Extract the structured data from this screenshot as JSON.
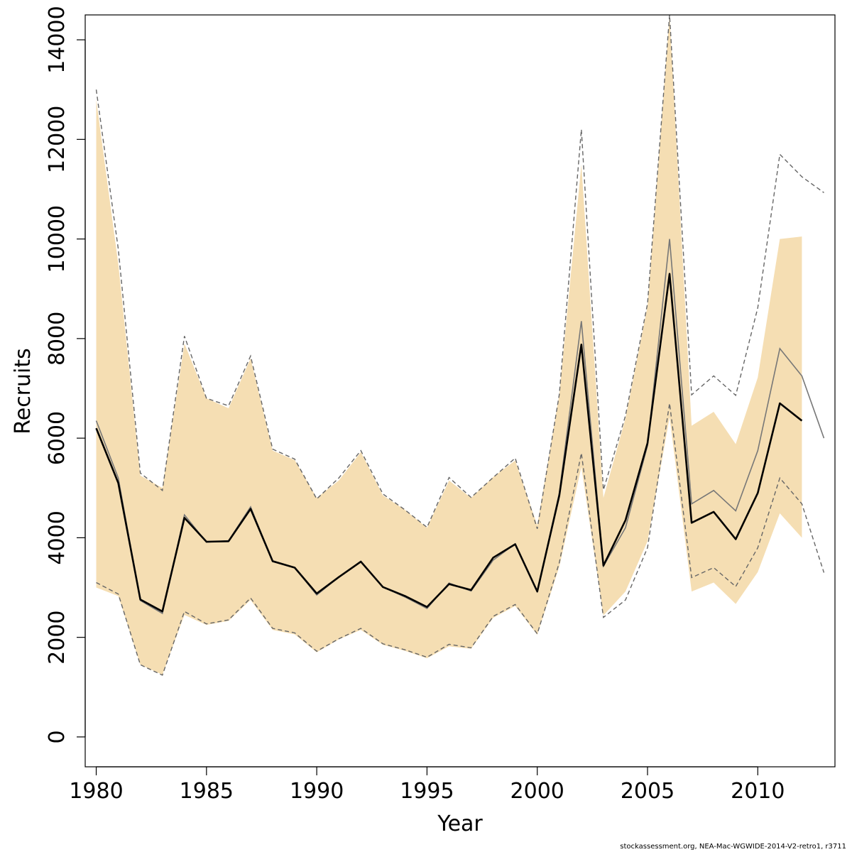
{
  "chart_data": {
    "type": "line",
    "xlabel": "Year",
    "ylabel": "Recruits",
    "xlim": [
      1979.5,
      2013.5
    ],
    "ylim": [
      -600,
      14500
    ],
    "x_ticks": [
      1980,
      1985,
      1990,
      1995,
      2000,
      2005,
      2010
    ],
    "y_ticks": [
      0,
      2000,
      4000,
      6000,
      8000,
      10000,
      12000,
      14000
    ],
    "colors": {
      "band": "#f5deb3",
      "estimate": "#000000",
      "retro": "#777777",
      "retro_ci": "#666666"
    },
    "band": {
      "x": [
        1980,
        1981,
        1982,
        1983,
        1984,
        1985,
        1986,
        1987,
        1988,
        1989,
        1990,
        1991,
        1992,
        1993,
        1994,
        1995,
        1996,
        1997,
        1998,
        1999,
        2000,
        2001,
        2002,
        2003,
        2004,
        2005,
        2006,
        2007,
        2008,
        2009,
        2010,
        2011,
        2012
      ],
      "lower": [
        3000,
        2830,
        1450,
        1250,
        2450,
        2250,
        2330,
        2750,
        2150,
        2060,
        1700,
        1960,
        2150,
        1850,
        1730,
        1580,
        1820,
        1770,
        2390,
        2630,
        2050,
        3420,
        5420,
        2440,
        2920,
        3930,
        6420,
        2920,
        3100,
        2670,
        3310,
        4490,
        4000
      ],
      "upper": [
        12800,
        9500,
        5250,
        5000,
        7900,
        6800,
        6600,
        7600,
        5750,
        5560,
        4800,
        5150,
        5720,
        4850,
        4560,
        4200,
        5150,
        4800,
        5220,
        5550,
        4250,
        6880,
        11500,
        4800,
        6400,
        8650,
        14500,
        6250,
        6530,
        5880,
        7220,
        10000,
        10050
      ]
    },
    "series": [
      {
        "x": [
          1980,
          1981,
          1982,
          1983,
          1984,
          1985,
          1986,
          1987,
          1988,
          1989,
          1990,
          1991,
          1992,
          1993,
          1994,
          1995,
          1996,
          1997,
          1998,
          1999,
          2000,
          2001,
          2002,
          2003,
          2004,
          2005,
          2006,
          2007,
          2008,
          2009,
          2010,
          2011,
          2012
        ],
        "values": [
          6200,
          5100,
          2760,
          2520,
          4400,
          3920,
          3930,
          4580,
          3530,
          3400,
          2880,
          3210,
          3520,
          3010,
          2830,
          2610,
          3070,
          2950,
          3600,
          3870,
          2920,
          4850,
          7880,
          3440,
          4350,
          5900,
          9300,
          4300,
          4520,
          3970,
          4900,
          6700,
          6350
        ]
      },
      {
        "x": [
          1980,
          1981,
          1982,
          1983,
          1984,
          1985,
          1986,
          1987,
          1988,
          1989,
          1990,
          1991,
          1992,
          1993,
          1994,
          1995,
          1996,
          1997,
          1998,
          1999,
          2000,
          2001,
          2002,
          2003,
          2004,
          2005,
          2006,
          2007,
          2008,
          2009,
          2010,
          2011,
          2012,
          2013
        ],
        "values": [
          6350,
          5200,
          2740,
          2480,
          4460,
          3910,
          3940,
          4620,
          3520,
          3400,
          2850,
          3210,
          3530,
          3010,
          2810,
          2580,
          3090,
          2930,
          3550,
          3880,
          2920,
          4900,
          8350,
          3430,
          4200,
          5850,
          10000,
          4680,
          4950,
          4540,
          5750,
          7800,
          7250,
          6000
        ]
      }
    ],
    "retro_ci": {
      "x": [
        1980,
        1981,
        1982,
        1983,
        1984,
        1985,
        1986,
        1987,
        1988,
        1989,
        1990,
        1991,
        1992,
        1993,
        1994,
        1995,
        1996,
        1997,
        1998,
        1999,
        2000,
        2001,
        2002,
        2003,
        2004,
        2005,
        2006,
        2007,
        2008,
        2009,
        2010,
        2011,
        2012,
        2013
      ],
      "lower": [
        3100,
        2870,
        1450,
        1240,
        2520,
        2270,
        2350,
        2790,
        2180,
        2090,
        1720,
        1970,
        2180,
        1870,
        1750,
        1600,
        1860,
        1790,
        2420,
        2660,
        2070,
        3500,
        5700,
        2400,
        2750,
        3800,
        6700,
        3200,
        3400,
        3020,
        3800,
        5200,
        4680,
        3300
      ],
      "upper": [
        13000,
        9800,
        5300,
        4950,
        8050,
        6800,
        6650,
        7650,
        5780,
        5580,
        4780,
        5200,
        5750,
        4880,
        4560,
        4210,
        5210,
        4810,
        5210,
        5600,
        4180,
        6880,
        12200,
        4960,
        6450,
        8700,
        14500,
        6870,
        7250,
        6860,
        8620,
        11700,
        11250,
        10930
      ]
    }
  },
  "footer": {
    "text": "stockassessment.org, NEA-Mac-WGWIDE-2014-V2-retro1, r3711"
  }
}
